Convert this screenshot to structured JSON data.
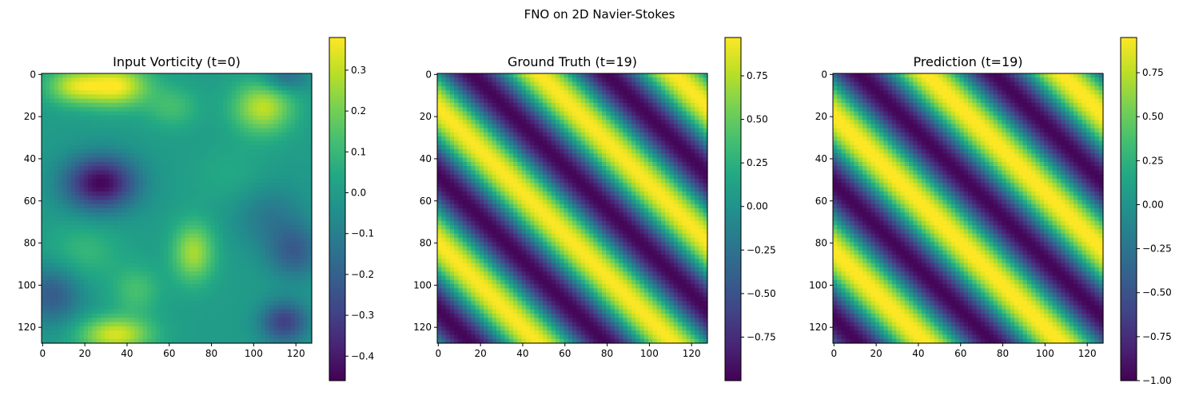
{
  "figure": {
    "suptitle": "FNO on 2D Navier-Stokes"
  },
  "chart_data": [
    {
      "type": "heatmap",
      "title": "Input Vorticity (t=0)",
      "grid_size": 128,
      "x_ticks": [
        0,
        20,
        40,
        60,
        80,
        100,
        120
      ],
      "y_ticks": [
        0,
        20,
        40,
        60,
        80,
        100,
        120
      ],
      "colormap": "viridis",
      "clim": [
        -0.46,
        0.38
      ],
      "colorbar_ticks": [
        0.3,
        0.2,
        0.1,
        0.0,
        -0.1,
        -0.2,
        -0.3,
        -0.4
      ],
      "colorbar_labels": [
        "0.3",
        "0.2",
        "0.1",
        "0.0",
        "−0.1",
        "−0.2",
        "−0.3",
        "−0.4"
      ],
      "field": {
        "kind": "blobs",
        "base": 0.0,
        "blobs": [
          {
            "x": 35,
            "y": 6,
            "sx": 11,
            "sy": 7,
            "a": 0.37
          },
          {
            "x": 15,
            "y": 6,
            "sx": 9,
            "sy": 6,
            "a": 0.27
          },
          {
            "x": 105,
            "y": 16,
            "sx": 10,
            "sy": 9,
            "a": 0.3
          },
          {
            "x": 62,
            "y": 16,
            "sx": 9,
            "sy": 7,
            "a": 0.12
          },
          {
            "x": 28,
            "y": 52,
            "sx": 12,
            "sy": 9,
            "a": -0.45
          },
          {
            "x": 72,
            "y": 85,
            "sx": 7,
            "sy": 10,
            "a": 0.27
          },
          {
            "x": 35,
            "y": 124,
            "sx": 12,
            "sy": 6,
            "a": 0.33
          },
          {
            "x": 45,
            "y": 103,
            "sx": 8,
            "sy": 8,
            "a": 0.13
          },
          {
            "x": 5,
            "y": 105,
            "sx": 10,
            "sy": 10,
            "a": -0.22
          },
          {
            "x": 120,
            "y": 85,
            "sx": 9,
            "sy": 9,
            "a": -0.2
          },
          {
            "x": 115,
            "y": 118,
            "sx": 8,
            "sy": 7,
            "a": -0.3
          },
          {
            "x": 108,
            "y": 68,
            "sx": 12,
            "sy": 11,
            "a": -0.12
          },
          {
            "x": 90,
            "y": 48,
            "sx": 12,
            "sy": 10,
            "a": 0.05
          },
          {
            "x": 115,
            "y": 2,
            "sx": 8,
            "sy": 5,
            "a": -0.18
          },
          {
            "x": 20,
            "y": 85,
            "sx": 12,
            "sy": 10,
            "a": 0.1
          }
        ]
      }
    },
    {
      "type": "heatmap",
      "title": "Ground Truth (t=19)",
      "grid_size": 128,
      "x_ticks": [
        0,
        20,
        40,
        60,
        80,
        100,
        120
      ],
      "y_ticks": [
        0,
        20,
        40,
        60,
        80,
        100,
        120
      ],
      "colormap": "viridis",
      "clim": [
        -1.0,
        0.97
      ],
      "colorbar_ticks": [
        0.75,
        0.5,
        0.25,
        0.0,
        -0.25,
        -0.5,
        -0.75
      ],
      "colorbar_labels": [
        "0.75",
        "0.50",
        "0.25",
        "0.00",
        "−0.25",
        "−0.50",
        "−0.75"
      ],
      "field": {
        "kind": "wave",
        "phase": 0.0
      }
    },
    {
      "type": "heatmap",
      "title": "Prediction (t=19)",
      "grid_size": 128,
      "x_ticks": [
        0,
        20,
        40,
        60,
        80,
        100,
        120
      ],
      "y_ticks": [
        0,
        20,
        40,
        60,
        80,
        100,
        120
      ],
      "colormap": "viridis",
      "clim": [
        -1.0,
        0.95
      ],
      "colorbar_ticks": [
        0.75,
        0.5,
        0.25,
        0.0,
        -0.25,
        -0.5,
        -0.75,
        -1.0
      ],
      "colorbar_labels": [
        "0.75",
        "0.50",
        "0.25",
        "0.00",
        "−0.25",
        "−0.50",
        "−0.75",
        "−1.00"
      ],
      "field": {
        "kind": "wave",
        "phase": 0.06
      }
    }
  ]
}
